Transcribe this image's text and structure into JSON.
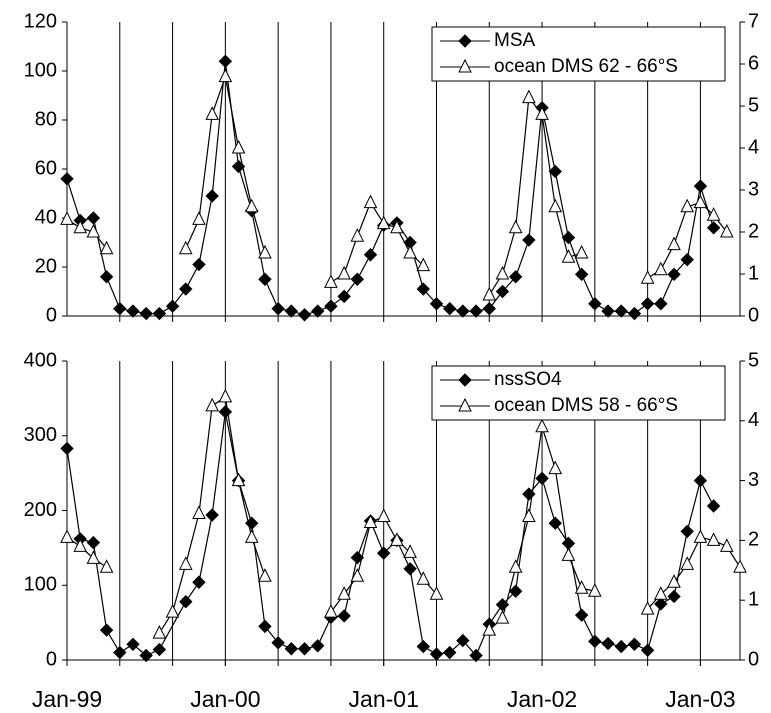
{
  "chart_data": [
    {
      "type": "line",
      "xlim": [
        0,
        51
      ],
      "xgridlines": [
        4,
        8,
        12,
        16,
        20,
        24,
        28,
        32,
        36,
        40,
        44,
        48
      ],
      "ylim": [
        0,
        120
      ],
      "yticks": [
        0,
        20,
        40,
        60,
        80,
        100,
        120
      ],
      "y2lim": [
        0,
        7
      ],
      "y2ticks": [
        0,
        1,
        2,
        3,
        4,
        5,
        6,
        7
      ],
      "legend": "top-right",
      "series": [
        {
          "name": "MSA",
          "color": "#000000",
          "marker": "diamond",
          "x": [
            0,
            1,
            2,
            3,
            4,
            5,
            6,
            7,
            8,
            9,
            10,
            11,
            12,
            13,
            14,
            15,
            16,
            17,
            18,
            19,
            20,
            21,
            22,
            23,
            24,
            25,
            26,
            27,
            28,
            29,
            30,
            31,
            32,
            33,
            34,
            35,
            36,
            37,
            38,
            39,
            40,
            41,
            42,
            43,
            44,
            45,
            46,
            47,
            48,
            49
          ],
          "values": [
            56,
            39,
            40,
            16,
            3,
            2,
            1,
            1,
            4,
            11,
            21,
            49,
            104,
            61,
            43,
            15,
            3,
            2,
            0.5,
            2,
            4,
            8,
            15,
            25,
            37,
            38,
            30,
            11,
            5,
            3,
            2,
            2,
            3,
            10,
            16,
            31,
            85,
            59,
            32,
            17,
            5,
            2,
            2,
            1,
            5,
            5,
            17,
            23,
            53,
            36
          ]
        },
        {
          "name": "ocean DMS 62 - 66°S",
          "color": "#000000",
          "marker": "triangle",
          "axis": "y2",
          "x": [
            0,
            1,
            2,
            3,
            4,
            9,
            10,
            11,
            12,
            13,
            14,
            15,
            16,
            20,
            21,
            22,
            23,
            24,
            25,
            26,
            27,
            28,
            32,
            33,
            34,
            35,
            36,
            37,
            38,
            39,
            40,
            44,
            45,
            46,
            47,
            48,
            49,
            50
          ],
          "values": [
            2.3,
            2.1,
            2.0,
            1.6,
            null,
            1.6,
            2.3,
            4.8,
            5.7,
            4.0,
            2.6,
            1.5,
            null,
            0.8,
            1.0,
            1.9,
            2.7,
            2.2,
            2.1,
            1.5,
            1.2,
            null,
            0.5,
            1.0,
            2.1,
            5.2,
            4.8,
            2.6,
            1.4,
            1.5,
            null,
            0.9,
            1.1,
            1.7,
            2.6,
            2.7,
            2.4,
            2.0
          ]
        }
      ]
    },
    {
      "type": "line",
      "xlim": [
        0,
        51
      ],
      "xgridlines": [
        4,
        8,
        12,
        16,
        20,
        24,
        28,
        32,
        36,
        40,
        44,
        48
      ],
      "xticks": [
        {
          "value": 0,
          "label": "Jan-99"
        },
        {
          "value": 12,
          "label": "Jan-00"
        },
        {
          "value": 24,
          "label": "Jan-01"
        },
        {
          "value": 36,
          "label": "Jan-02"
        },
        {
          "value": 48,
          "label": "Jan-03"
        }
      ],
      "ylim": [
        0,
        400
      ],
      "yticks": [
        0,
        100,
        200,
        300,
        400
      ],
      "y2lim": [
        0,
        5
      ],
      "y2ticks": [
        0,
        1,
        2,
        3,
        4,
        5
      ],
      "legend": "top-right",
      "series": [
        {
          "name": "nssSO4",
          "color": "#000000",
          "marker": "diamond",
          "x": [
            0,
            1,
            2,
            3,
            4,
            5,
            6,
            7,
            9,
            10,
            11,
            12,
            13,
            14,
            15,
            16,
            17,
            18,
            19,
            20,
            21,
            22,
            23,
            24,
            25,
            26,
            27,
            28,
            29,
            30,
            31,
            32,
            33,
            34,
            35,
            36,
            37,
            38,
            39,
            40,
            41,
            42,
            43,
            44,
            45,
            46,
            47,
            48,
            49
          ],
          "values": [
            283,
            162,
            157,
            40,
            10,
            21,
            6,
            14,
            78,
            104,
            194,
            332,
            240,
            183,
            45,
            23,
            15,
            15,
            19,
            57,
            59,
            137,
            186,
            143,
            160,
            122,
            18,
            8,
            10,
            26,
            6,
            48,
            74,
            92,
            222,
            243,
            183,
            156,
            60,
            25,
            22,
            18,
            21,
            13,
            75,
            85,
            172,
            240,
            206
          ]
        },
        {
          "name": "ocean DMS 58 - 66°S",
          "color": "#000000",
          "marker": "triangle",
          "axis": "y2",
          "x": [
            0,
            1,
            2,
            3,
            4,
            7,
            8,
            9,
            10,
            11,
            12,
            13,
            14,
            15,
            16,
            20,
            21,
            22,
            23,
            24,
            25,
            26,
            27,
            28,
            29,
            32,
            33,
            34,
            35,
            36,
            37,
            38,
            39,
            40,
            41,
            44,
            45,
            46,
            47,
            48,
            49,
            50,
            51
          ],
          "values": [
            2.05,
            1.9,
            1.7,
            1.55,
            null,
            0.45,
            0.8,
            1.6,
            2.45,
            4.25,
            4.4,
            3.0,
            2.05,
            1.4,
            null,
            0.8,
            1.1,
            1.4,
            2.3,
            2.4,
            2.0,
            1.8,
            1.35,
            1.1,
            null,
            0.5,
            0.7,
            1.55,
            2.4,
            3.9,
            3.2,
            1.75,
            1.2,
            1.15,
            null,
            0.85,
            1.1,
            1.3,
            1.6,
            2.05,
            2.0,
            1.9,
            1.55
          ]
        }
      ]
    }
  ]
}
